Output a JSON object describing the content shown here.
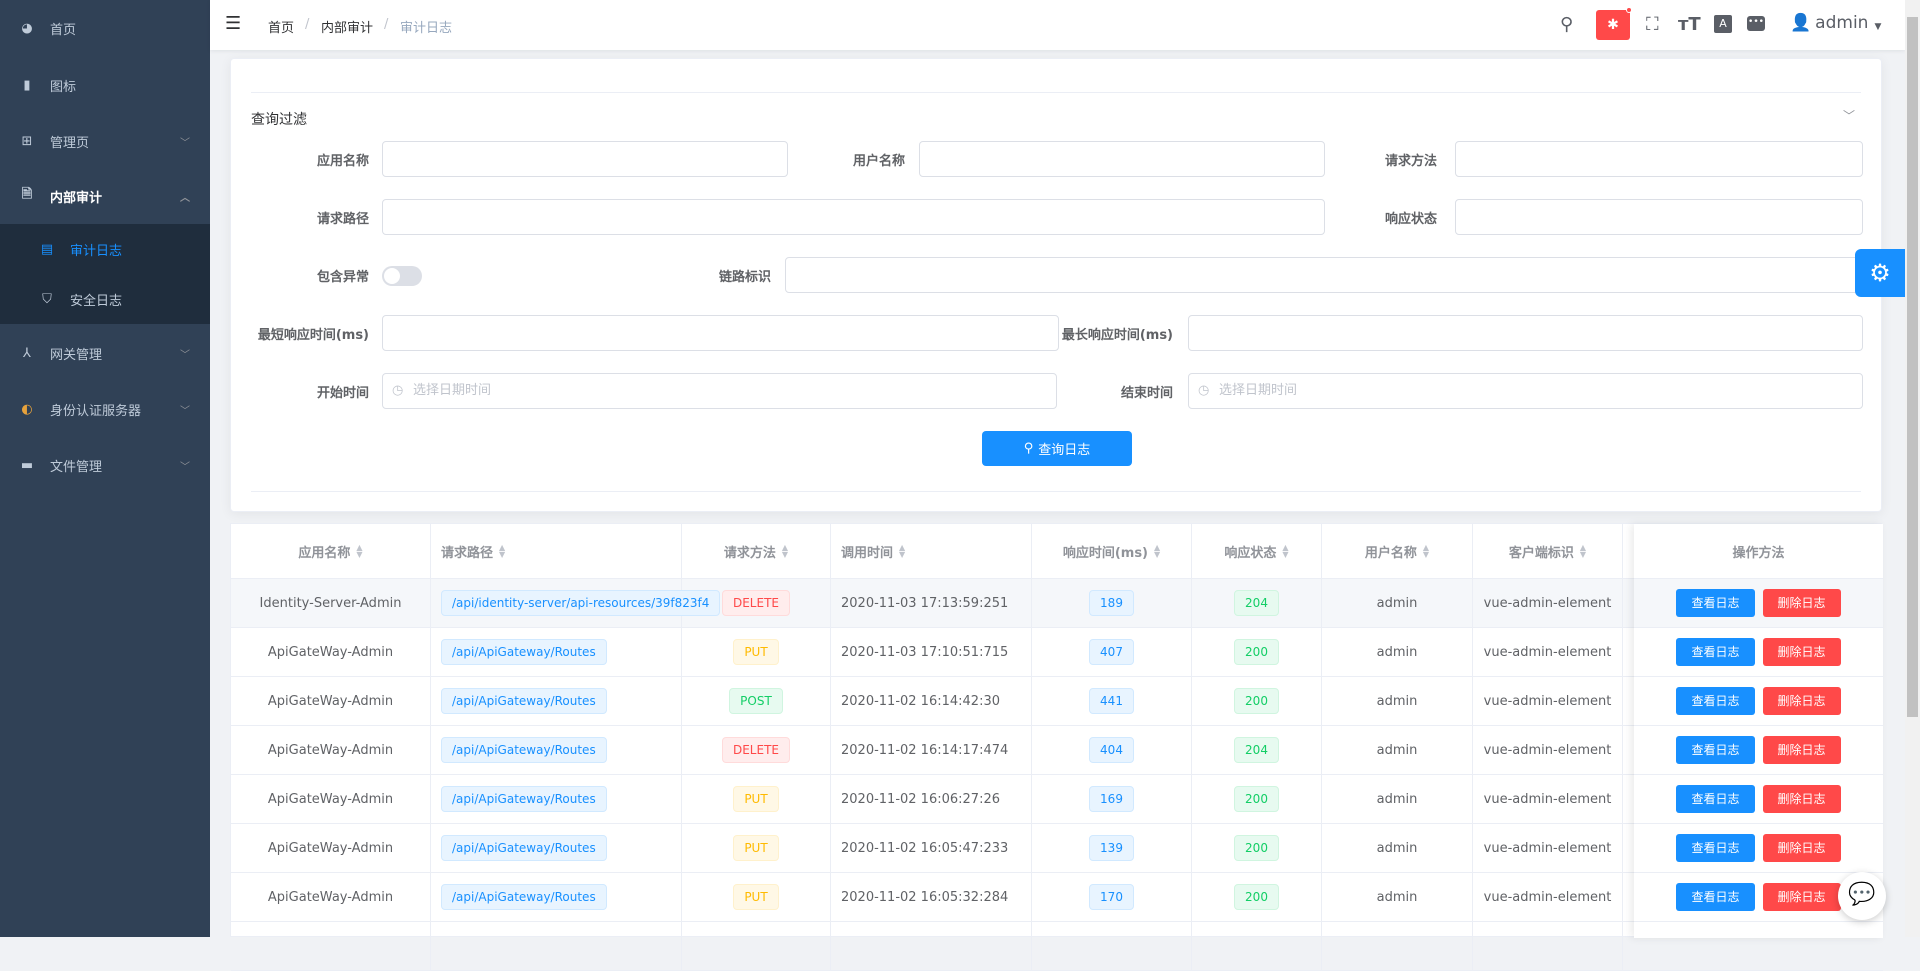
{
  "sidebar": {
    "items": [
      {
        "label": "首页",
        "icon": "dashboard-icon"
      },
      {
        "label": "图标",
        "icon": "icon-icon"
      },
      {
        "label": "管理页",
        "icon": "grid-icon"
      },
      {
        "label": "内部审计",
        "icon": "audit-icon",
        "expanded": true,
        "children": [
          {
            "label": "审计日志",
            "icon": "document-icon",
            "active": true
          },
          {
            "label": "安全日志",
            "icon": "shield-icon"
          }
        ]
      },
      {
        "label": "网关管理",
        "icon": "gateway-icon"
      },
      {
        "label": "身份认证服务器",
        "icon": "identity-icon"
      },
      {
        "label": "文件管理",
        "icon": "folder-icon"
      }
    ]
  },
  "header": {
    "breadcrumb": [
      "首页",
      "内部审计",
      "审计日志"
    ],
    "user": "admin",
    "accent": "#1890ff",
    "bug_badge_color": "#ff4949"
  },
  "filter": {
    "title": "查询过滤",
    "fields": {
      "app_name": {
        "label": "应用名称",
        "value": ""
      },
      "user_name": {
        "label": "用户名称",
        "value": ""
      },
      "method": {
        "label": "请求方法",
        "value": ""
      },
      "url": {
        "label": "请求路径",
        "value": ""
      },
      "status": {
        "label": "响应状态",
        "value": ""
      },
      "has_exception": {
        "label": "包含异常",
        "value": false
      },
      "correlation_id": {
        "label": "链路标识",
        "value": ""
      },
      "min_exec": {
        "label": "最短响应时间(ms)",
        "value": ""
      },
      "max_exec": {
        "label": "最长响应时间(ms)",
        "value": ""
      },
      "start_time": {
        "label": "开始时间",
        "placeholder": "选择日期时间"
      },
      "end_time": {
        "label": "结束时间",
        "placeholder": "选择日期时间"
      }
    },
    "search_button": "查询日志"
  },
  "table": {
    "columns": [
      "应用名称",
      "请求路径",
      "请求方法",
      "调用时间",
      "响应时间(ms)",
      "响应状态",
      "用户名称",
      "客户端标识",
      "操作方法"
    ],
    "view_label": "查看日志",
    "delete_label": "删除日志",
    "rows": [
      {
        "app": "Identity-Server-Admin",
        "url": "/api/identity-server/api-resources/39f823f4",
        "method": "DELETE",
        "time": "2020-11-03 17:13:59:251",
        "ms": "189",
        "status": "204",
        "user": "admin",
        "client": "vue-admin-element"
      },
      {
        "app": "ApiGateWay-Admin",
        "url": "/api/ApiGateway/Routes",
        "method": "PUT",
        "time": "2020-11-03 17:10:51:715",
        "ms": "407",
        "status": "200",
        "user": "admin",
        "client": "vue-admin-element"
      },
      {
        "app": "ApiGateWay-Admin",
        "url": "/api/ApiGateway/Routes",
        "method": "POST",
        "time": "2020-11-02 16:14:42:30",
        "ms": "441",
        "status": "200",
        "user": "admin",
        "client": "vue-admin-element"
      },
      {
        "app": "ApiGateWay-Admin",
        "url": "/api/ApiGateway/Routes",
        "method": "DELETE",
        "time": "2020-11-02 16:14:17:474",
        "ms": "404",
        "status": "204",
        "user": "admin",
        "client": "vue-admin-element"
      },
      {
        "app": "ApiGateWay-Admin",
        "url": "/api/ApiGateway/Routes",
        "method": "PUT",
        "time": "2020-11-02 16:06:27:26",
        "ms": "169",
        "status": "200",
        "user": "admin",
        "client": "vue-admin-element"
      },
      {
        "app": "ApiGateWay-Admin",
        "url": "/api/ApiGateway/Routes",
        "method": "PUT",
        "time": "2020-11-02 16:05:47:233",
        "ms": "139",
        "status": "200",
        "user": "admin",
        "client": "vue-admin-element"
      },
      {
        "app": "ApiGateWay-Admin",
        "url": "/api/ApiGateway/Routes",
        "method": "PUT",
        "time": "2020-11-02 16:05:32:284",
        "ms": "170",
        "status": "200",
        "user": "admin",
        "client": "vue-admin-element"
      }
    ]
  }
}
